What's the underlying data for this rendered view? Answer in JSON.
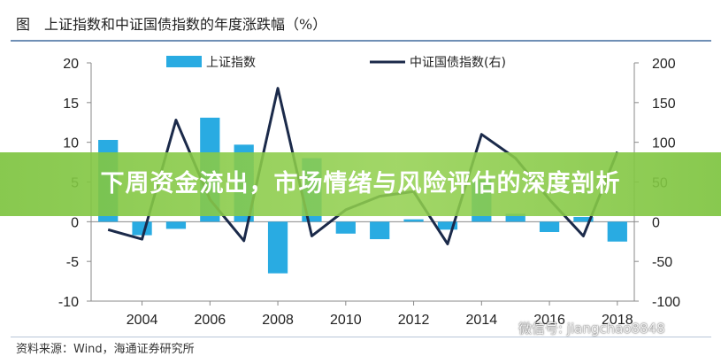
{
  "figure": {
    "label": "图",
    "title": "上证指数和中证国债指数的年度涨跌幅（%）"
  },
  "banner": {
    "text": "下周资金流出，市场情绪与风险评估的深度剖析"
  },
  "source": "资料来源：Wind，海通证券研究所",
  "watermark": {
    "text": "微信号: jiangchao8848",
    "icon": "wechat-icon"
  },
  "colors": {
    "bar": "#29abe2",
    "line": "#1b2a4a",
    "axis": "#888888"
  },
  "chart_data": {
    "type": "bar+line",
    "x": [
      2003,
      2004,
      2005,
      2006,
      2007,
      2008,
      2009,
      2010,
      2011,
      2012,
      2013,
      2014,
      2015,
      2016,
      2017,
      2018
    ],
    "x_tick_labels": [
      "2004",
      "2006",
      "2008",
      "2010",
      "2012",
      "2014",
      "2016",
      "2018"
    ],
    "x_tick_values": [
      2004,
      2006,
      2008,
      2010,
      2012,
      2014,
      2016,
      2018
    ],
    "series": [
      {
        "name": "上证指数",
        "type": "bar",
        "axis": "left",
        "values": [
          10.3,
          -1.7,
          -0.9,
          13.1,
          9.7,
          -6.5,
          8.0,
          -1.5,
          -2.2,
          0.3,
          -1.0,
          5.3,
          1.0,
          -1.3,
          0.6,
          -2.5
        ]
      },
      {
        "name": "中证国债指数(右)",
        "type": "line",
        "axis": "right",
        "values": [
          -10,
          -22,
          128,
          28,
          -24,
          168,
          -18,
          15,
          32,
          38,
          -28,
          110,
          80,
          28,
          -18,
          88
        ]
      }
    ],
    "y_left": {
      "ylim": [
        -10,
        20
      ],
      "ticks": [
        -10,
        -5,
        0,
        5,
        10,
        15,
        20
      ]
    },
    "y_right": {
      "ylim": [
        -100,
        200
      ],
      "ticks": [
        -100,
        -50,
        0,
        50,
        100,
        150,
        200
      ]
    },
    "legend_position": "top",
    "grid": false
  }
}
